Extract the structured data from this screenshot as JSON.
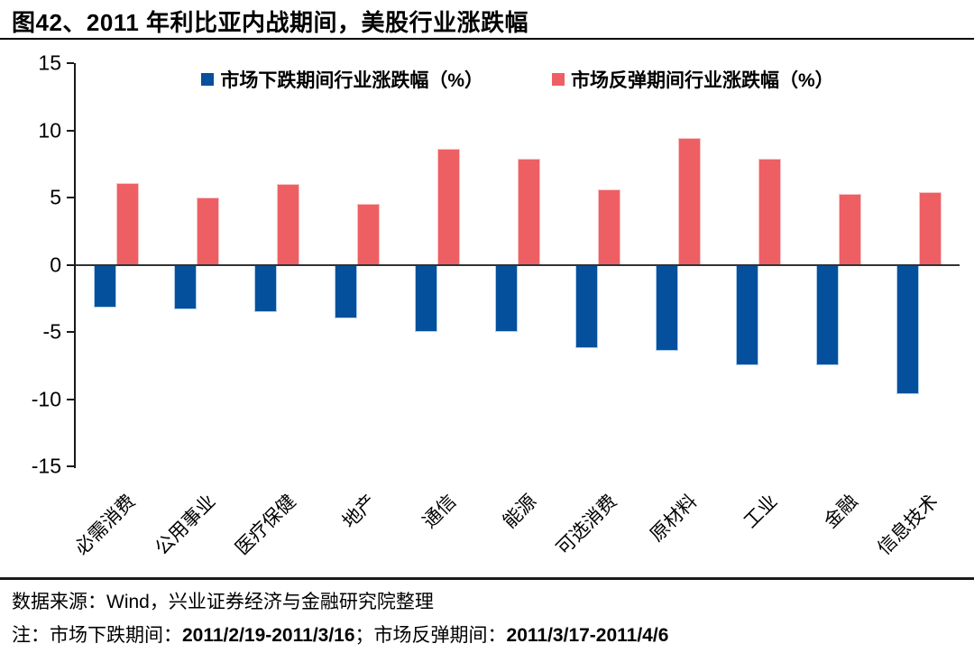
{
  "title": "图42、2011 年利比亚内战期间，美股行业涨跌幅",
  "chart_data": {
    "type": "bar",
    "title": "2011 年利比亚内战期间，美股行业涨跌幅",
    "categories": [
      "必需消费",
      "公用事业",
      "医疗保健",
      "地产",
      "通信",
      "能源",
      "可选消费",
      "原材料",
      "工业",
      "金融",
      "信息技术"
    ],
    "series": [
      {
        "key": "decline",
        "name": "市场下跌期间行业涨跌幅（%）",
        "color": "#04509C",
        "edge": "#AECDEC",
        "values": [
          -3.2,
          -3.3,
          -3.5,
          -4.0,
          -5.0,
          -5.0,
          -6.2,
          -6.4,
          -7.5,
          -7.5,
          -9.6
        ]
      },
      {
        "key": "rebound",
        "name": "市场反弹期间行业涨跌幅（%）",
        "color": "#EE5F63",
        "edge": "#F7C2C5",
        "values": [
          6.1,
          5.0,
          6.0,
          4.5,
          8.6,
          7.9,
          5.6,
          9.4,
          7.9,
          5.3,
          5.4
        ]
      }
    ],
    "ylim": [
      -15,
      15
    ],
    "y_ticks": [
      15,
      10,
      5,
      0,
      -5,
      -10,
      -15
    ],
    "grid": false,
    "legend_position": "top-center",
    "unit": "%"
  },
  "footer": {
    "source": "数据来源：Wind，兴业证券经济与金融研究院整理",
    "note_prefix": "注：市场下跌期间：",
    "note_period1": "2011/2/19-2011/3/16",
    "note_mid": "；市场反弹期间：",
    "note_period2": "2011/3/17-2011/4/6"
  },
  "axis_colors": {
    "axis": "#1A1A1A",
    "zero_line": "#333333",
    "text": "#000000"
  }
}
